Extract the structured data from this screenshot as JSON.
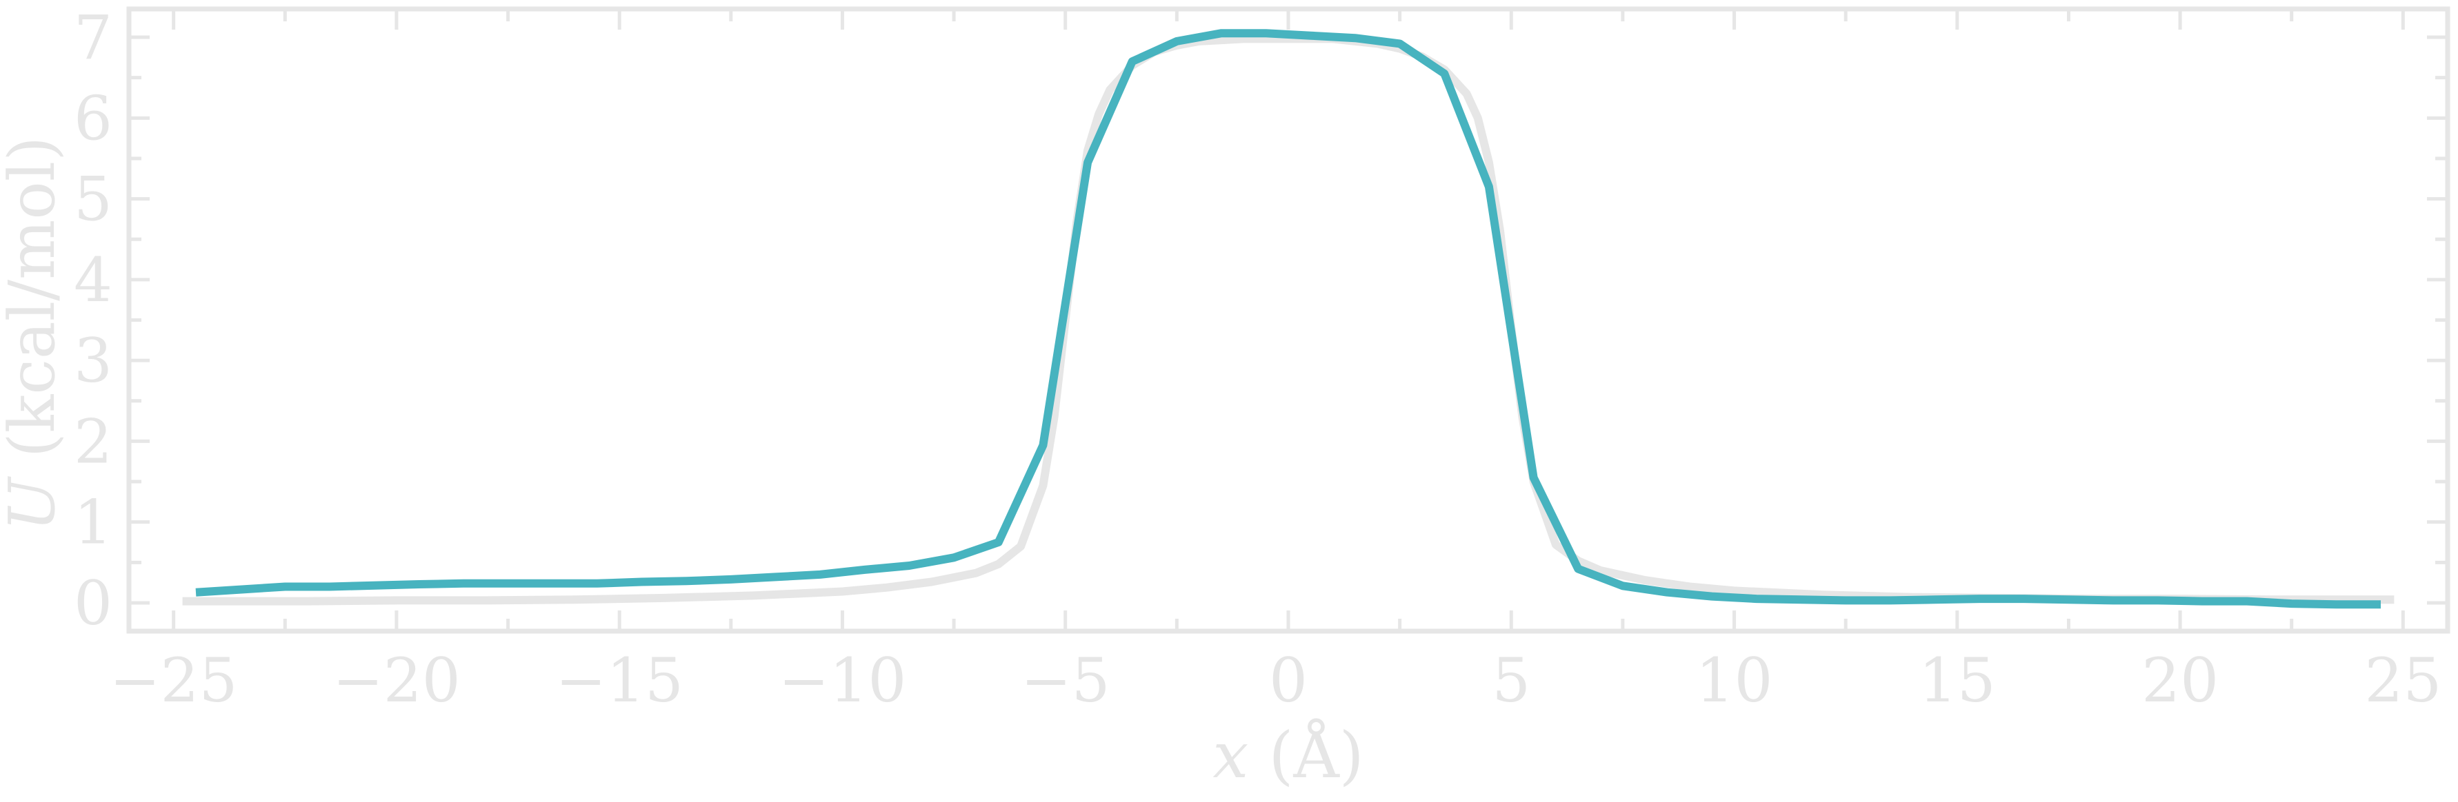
{
  "chart_data": {
    "type": "line",
    "title": "",
    "xlabel": "x (Å)",
    "xlabel_var": "x",
    "xlabel_unit": "(Å)",
    "ylabel": "U (kcal/mol)",
    "ylabel_var": "U",
    "ylabel_unit": "(kcal/mol)",
    "xlim": [
      -26,
      26
    ],
    "ylim": [
      -0.35,
      7.35
    ],
    "xticks": [
      -25,
      -20,
      -15,
      -10,
      -5,
      0,
      5,
      10,
      15,
      20,
      25
    ],
    "xtick_labels": [
      "−25",
      "−20",
      "−15",
      "−10",
      "−5",
      "0",
      "5",
      "10",
      "15",
      "20",
      "25"
    ],
    "yticks": [
      0,
      1,
      2,
      3,
      4,
      5,
      6,
      7
    ],
    "ytick_labels": [
      "0",
      "1",
      "2",
      "3",
      "4",
      "5",
      "6",
      "7"
    ],
    "grid": false,
    "legend": false,
    "frame_color": "#e6e6e6",
    "series": [
      {
        "color": "#47b3bf",
        "x": [
          -24.5,
          -22.5,
          -21.5,
          -19.5,
          -18.5,
          -17.5,
          -16.5,
          -15.5,
          -14.5,
          -13.5,
          -12.5,
          -11.5,
          -10.5,
          -9.5,
          -8.5,
          -7.5,
          -6.5,
          -5.5,
          -4.5,
          -3.5,
          -2.5,
          -1.5,
          -0.5,
          0.5,
          1.5,
          2.5,
          3.5,
          4.5,
          5.5,
          6.5,
          7.5,
          8.5,
          9.5,
          10.5,
          11.5,
          12.5,
          13.5,
          14.5,
          15.5,
          16.5,
          17.5,
          18.5,
          19.5,
          20.5,
          21.5,
          22.5,
          23.5,
          24.5
        ],
        "y": [
          0.13,
          0.2,
          0.2,
          0.23,
          0.24,
          0.24,
          0.24,
          0.24,
          0.26,
          0.27,
          0.29,
          0.32,
          0.35,
          0.41,
          0.46,
          0.56,
          0.75,
          1.95,
          5.45,
          6.7,
          6.95,
          7.05,
          7.05,
          7.02,
          6.99,
          6.92,
          6.55,
          5.15,
          1.55,
          0.42,
          0.21,
          0.13,
          0.08,
          0.05,
          0.04,
          0.03,
          0.03,
          0.04,
          0.05,
          0.05,
          0.04,
          0.03,
          0.03,
          0.02,
          0.02,
          -0.01,
          -0.02,
          -0.02
        ]
      },
      {
        "color": "#e6e6e6",
        "x": [
          -24.8,
          -22,
          -20,
          -18,
          -16,
          -14,
          -12,
          -10,
          -9,
          -8,
          -7,
          -6.5,
          -6,
          -5.5,
          -5.25,
          -5,
          -4.75,
          -4.5,
          -4.25,
          -4,
          -3.5,
          -3,
          -2.5,
          -2,
          -1,
          0,
          1,
          2,
          2.5,
          3,
          3.5,
          4,
          4.25,
          4.5,
          4.75,
          5,
          5.25,
          5.5,
          6,
          6.5,
          7,
          8,
          9,
          10,
          12,
          14,
          16,
          18,
          20,
          22,
          24.8
        ],
        "y": [
          0.02,
          0.02,
          0.03,
          0.03,
          0.04,
          0.06,
          0.09,
          0.14,
          0.19,
          0.26,
          0.37,
          0.48,
          0.7,
          1.45,
          2.3,
          3.5,
          4.7,
          5.6,
          6.05,
          6.35,
          6.65,
          6.82,
          6.9,
          6.95,
          6.98,
          6.98,
          6.98,
          6.92,
          6.86,
          6.76,
          6.6,
          6.3,
          6.0,
          5.45,
          4.6,
          3.4,
          2.3,
          1.5,
          0.72,
          0.52,
          0.4,
          0.28,
          0.2,
          0.15,
          0.1,
          0.07,
          0.06,
          0.05,
          0.05,
          0.04,
          0.04
        ]
      }
    ]
  }
}
